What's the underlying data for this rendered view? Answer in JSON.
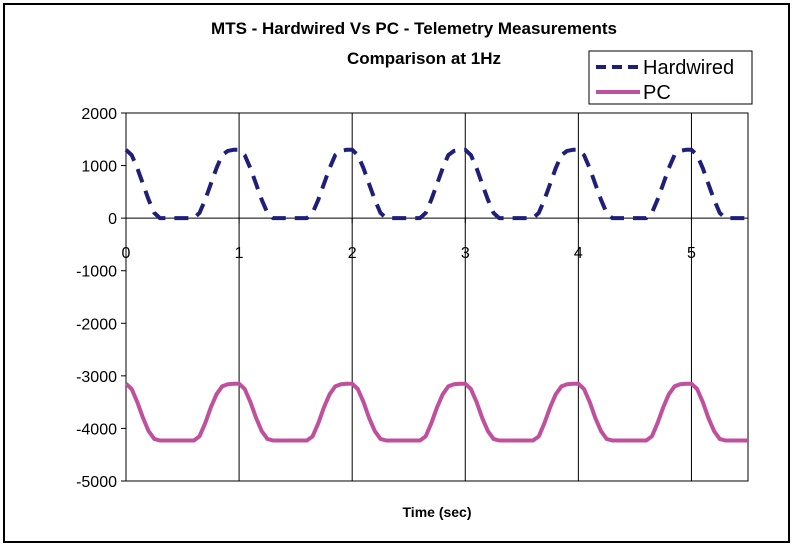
{
  "chart_data": {
    "type": "line",
    "title": "MTS - Hardwired Vs PC - Telemetry Measurements",
    "subtitle": "Comparison at 1Hz",
    "xlabel": "Time (sec)",
    "ylabel": "",
    "xlim": [
      0,
      5.5
    ],
    "ylim": [
      -5000,
      2000
    ],
    "x_ticks": [
      "0",
      "1",
      "2",
      "3",
      "4",
      "5"
    ],
    "y_ticks": [
      "2000",
      "1000",
      "0",
      "-1000",
      "-2000",
      "-3000",
      "-4000",
      "-5000"
    ],
    "grid": "vertical lines at each x tick",
    "legend_position": "top-right",
    "series": [
      {
        "name": "Hardwired",
        "color": "#1f1f7a",
        "style": "dashed",
        "x": [
          0,
          0.05,
          0.1,
          0.15,
          0.2,
          0.25,
          0.3,
          0.35,
          0.4,
          0.5,
          0.6,
          0.65,
          0.7,
          0.75,
          0.8,
          0.85,
          0.9,
          0.95,
          1.0
        ],
        "y": [
          1300,
          1200,
          950,
          650,
          350,
          100,
          0,
          0,
          0,
          0,
          0,
          100,
          350,
          650,
          950,
          1200,
          1280,
          1300,
          1300
        ],
        "period": 1.0,
        "note_range": [
          0,
          5.5
        ]
      },
      {
        "name": "PC",
        "color": "#c0509e",
        "style": "solid",
        "x": [
          0,
          0.05,
          0.1,
          0.15,
          0.2,
          0.25,
          0.3,
          0.35,
          0.4,
          0.5,
          0.6,
          0.65,
          0.7,
          0.75,
          0.8,
          0.85,
          0.9,
          0.95,
          1.0
        ],
        "y": [
          -3150,
          -3250,
          -3500,
          -3800,
          -4050,
          -4200,
          -4230,
          -4230,
          -4230,
          -4230,
          -4230,
          -4150,
          -3900,
          -3600,
          -3350,
          -3200,
          -3160,
          -3150,
          -3150
        ],
        "period": 1.0,
        "note_range": [
          0,
          5.5
        ]
      }
    ]
  }
}
